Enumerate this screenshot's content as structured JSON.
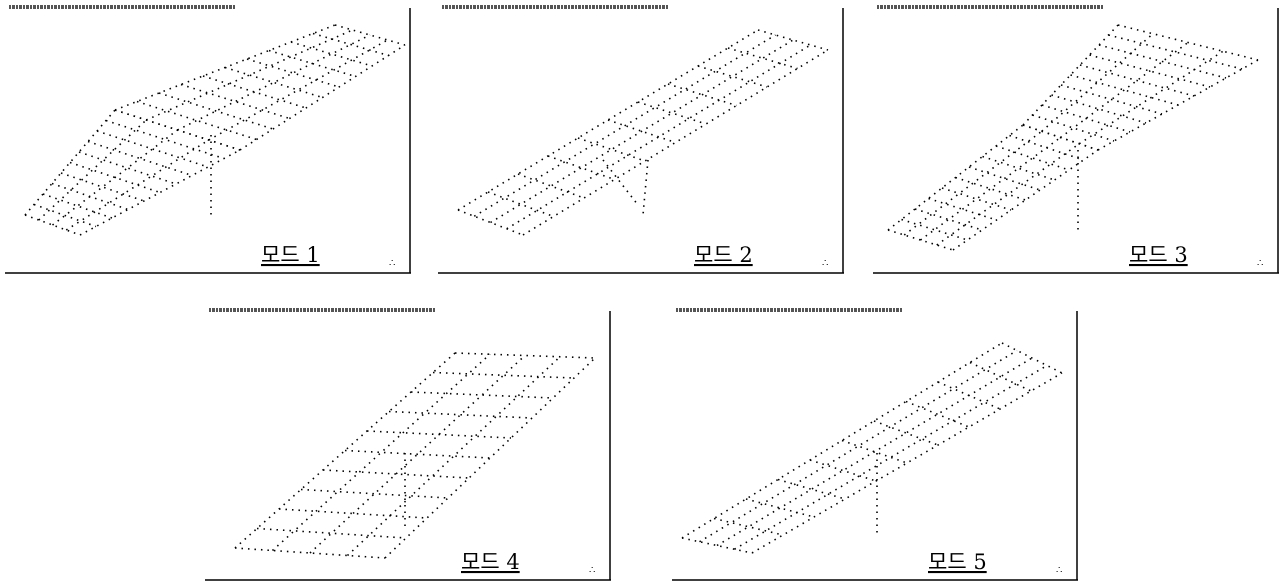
{
  "panels": [
    {
      "label": "모드 1"
    },
    {
      "label": "모드 2"
    },
    {
      "label": "모드 3"
    },
    {
      "label": "모드 4"
    },
    {
      "label": "모드 5"
    }
  ]
}
